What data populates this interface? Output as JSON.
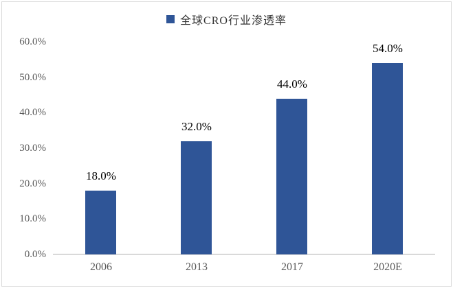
{
  "chart": {
    "legend_label": "全球CRO行业渗透率",
    "colors": {
      "bar": "#2f5597",
      "axis_text": "#595959",
      "data_label_text": "#000000",
      "legend_text": "#333333",
      "baseline": "#d9d9d9",
      "frame_border": "#d9d9d9",
      "background": "#ffffff"
    }
  },
  "chart_data": {
    "type": "bar",
    "title": "",
    "legend": [
      "全球CRO行业渗透率"
    ],
    "legend_position": "top-center",
    "categories": [
      "2006",
      "2013",
      "2017",
      "2020E"
    ],
    "values": [
      18.0,
      32.0,
      44.0,
      54.0
    ],
    "data_labels": [
      "18.0%",
      "32.0%",
      "44.0%",
      "54.0%"
    ],
    "xlabel": "",
    "ylabel": "",
    "ylim": [
      0,
      60
    ],
    "grid": false,
    "yticks": [
      {
        "value": 0,
        "label": "0.0%"
      },
      {
        "value": 10,
        "label": "10.0%"
      },
      {
        "value": 20,
        "label": "20.0%"
      },
      {
        "value": 30,
        "label": "30.0%"
      },
      {
        "value": 40,
        "label": "40.0%"
      },
      {
        "value": 50,
        "label": "50.0%"
      },
      {
        "value": 60,
        "label": "60.0%"
      }
    ]
  }
}
